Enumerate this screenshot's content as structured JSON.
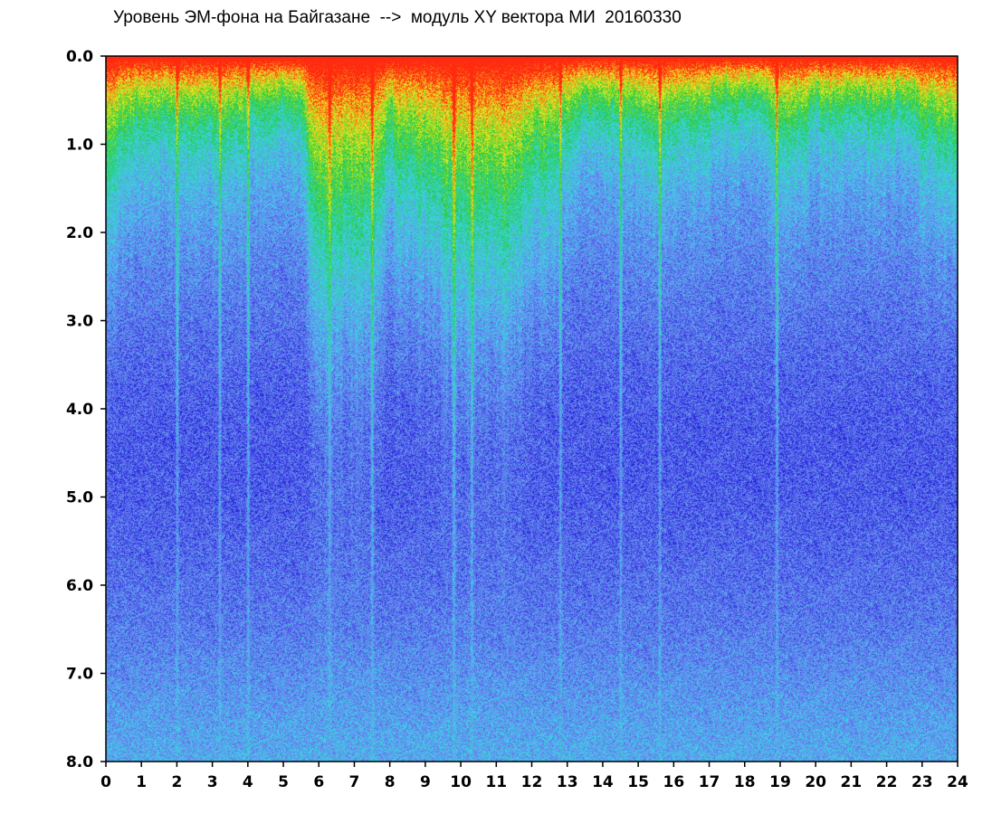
{
  "chart_data": {
    "type": "heatmap",
    "title": "Уровень ЭМ-фона на Байгазане  -->  модуль XY вектора МИ  20160330",
    "xlabel": "",
    "ylabel": "",
    "xlim": [
      0,
      24
    ],
    "ylim": [
      8.0,
      0.0
    ],
    "y_axis_inverted": true,
    "grid": false,
    "legend": "none",
    "x_ticks": [
      "0",
      "1",
      "2",
      "3",
      "4",
      "5",
      "6",
      "7",
      "8",
      "9",
      "10",
      "11",
      "12",
      "13",
      "14",
      "15",
      "16",
      "17",
      "18",
      "19",
      "20",
      "21",
      "22",
      "23",
      "24"
    ],
    "y_ticks": [
      "0.0",
      "1.0",
      "2.0",
      "3.0",
      "4.0",
      "5.0",
      "6.0",
      "7.0",
      "8.0"
    ],
    "colorscale": [
      "#1a1ad8",
      "#6f7ff0",
      "#3ad8e8",
      "#22c83a",
      "#f0f020",
      "#ff2a10"
    ],
    "high_intensity_extent_by_hour": {
      "hours": [
        0,
        0.5,
        1,
        1.5,
        2,
        2.5,
        3,
        3.5,
        4,
        4.5,
        5,
        5.5,
        6,
        6.5,
        7,
        7.5,
        8,
        8.5,
        9,
        9.5,
        10,
        10.5,
        11,
        11.5,
        12,
        12.5,
        13,
        13.5,
        14,
        14.5,
        15,
        15.5,
        16,
        16.5,
        17,
        17.5,
        18,
        18.5,
        19,
        19.5,
        20,
        20.5,
        21,
        21.5,
        22,
        22.5,
        23,
        23.5,
        24
      ],
      "levels": [
        1.6,
        1.2,
        1.0,
        1.1,
        1.0,
        1.1,
        1.0,
        1.2,
        1.0,
        0.9,
        0.8,
        0.9,
        2.6,
        2.4,
        2.8,
        2.2,
        1.3,
        1.6,
        1.8,
        2.5,
        2.7,
        2.4,
        2.2,
        2.6,
        1.5,
        1.8,
        1.1,
        0.8,
        0.8,
        1.0,
        0.9,
        1.1,
        1.0,
        1.0,
        0.9,
        0.7,
        0.8,
        0.8,
        1.3,
        1.1,
        0.9,
        1.0,
        0.8,
        0.9,
        0.9,
        0.9,
        1.0,
        1.2,
        1.3
      ]
    },
    "bright_vertical_lines_hours": [
      2.0,
      3.2,
      4.0,
      6.3,
      7.5,
      9.8,
      10.3,
      12.8,
      14.5,
      15.6,
      18.9
    ]
  }
}
